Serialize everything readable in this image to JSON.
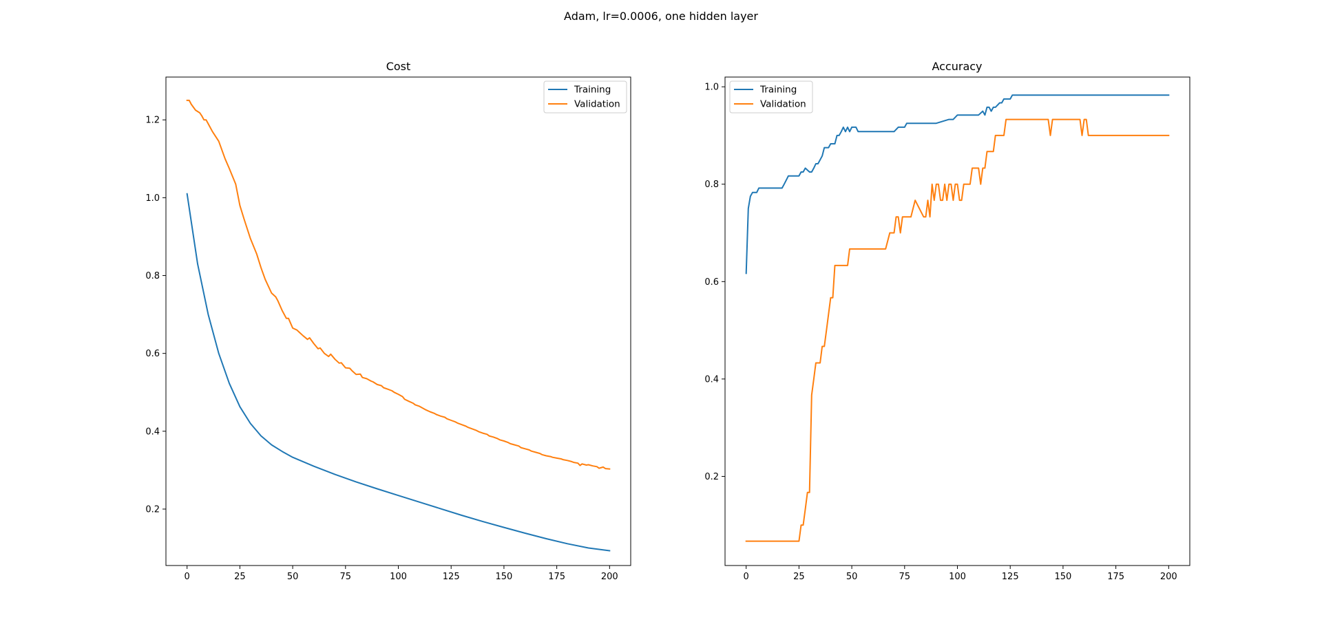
{
  "figure": {
    "suptitle": "Adam, lr=0.0006, one hidden layer"
  },
  "colors": {
    "training": "#1f77b4",
    "validation": "#ff7f0e",
    "axis": "#000000",
    "legend_border": "#cccccc"
  },
  "chart_data": [
    {
      "type": "line",
      "title": "Cost",
      "xlabel": "",
      "ylabel": "",
      "xlim": [
        -10,
        210
      ],
      "ylim": [
        0.055,
        1.31
      ],
      "xticks": [
        0,
        25,
        50,
        75,
        100,
        125,
        150,
        175,
        200
      ],
      "yticks": [
        0.2,
        0.4,
        0.6,
        0.8,
        1.0,
        1.2
      ],
      "ytick_labels": [
        "0.2",
        "0.4",
        "0.6",
        "0.8",
        "1.0",
        "1.2"
      ],
      "grid": false,
      "legend": {
        "location": "upper right",
        "entries": [
          "Training",
          "Validation"
        ]
      },
      "series": [
        {
          "name": "Training",
          "color": "#1f77b4",
          "x": [
            0,
            5,
            10,
            15,
            20,
            25,
            30,
            35,
            40,
            45,
            50,
            60,
            70,
            80,
            90,
            100,
            110,
            120,
            130,
            140,
            150,
            160,
            170,
            180,
            190,
            200
          ],
          "y": [
            1.01,
            0.83,
            0.7,
            0.6,
            0.523,
            0.463,
            0.42,
            0.388,
            0.365,
            0.348,
            0.333,
            0.31,
            0.289,
            0.27,
            0.252,
            0.235,
            0.218,
            0.201,
            0.184,
            0.168,
            0.153,
            0.138,
            0.124,
            0.111,
            0.1,
            0.093
          ]
        },
        {
          "name": "Validation",
          "color": "#ff7f0e",
          "x": [
            0,
            1,
            2,
            4,
            6,
            7,
            8,
            9,
            10,
            12,
            15,
            18,
            20,
            23,
            25,
            27,
            30,
            33,
            35,
            37,
            40,
            42,
            43,
            45,
            47,
            48,
            50,
            52,
            53,
            55,
            57,
            58,
            60,
            62,
            63,
            65,
            67,
            68,
            70,
            72,
            73,
            75,
            77,
            78,
            80,
            82,
            83,
            85,
            87,
            88,
            90,
            92,
            93,
            95,
            97,
            98,
            100,
            102,
            103,
            105,
            107,
            108,
            110,
            112,
            113,
            115,
            117,
            118,
            120,
            122,
            123,
            125,
            127,
            128,
            130,
            132,
            133,
            135,
            137,
            138,
            140,
            142,
            143,
            145,
            147,
            148,
            150,
            152,
            153,
            155,
            157,
            158,
            160,
            162,
            163,
            165,
            167,
            168,
            170,
            172,
            173,
            175,
            177,
            178,
            180,
            182,
            183,
            185,
            186,
            187,
            189,
            190,
            192,
            194,
            195,
            197,
            198,
            200
          ],
          "y": [
            1.25,
            1.25,
            1.24,
            1.225,
            1.218,
            1.21,
            1.2,
            1.2,
            1.19,
            1.17,
            1.145,
            1.1,
            1.075,
            1.035,
            0.98,
            0.945,
            0.895,
            0.855,
            0.82,
            0.79,
            0.755,
            0.745,
            0.735,
            0.71,
            0.69,
            0.69,
            0.665,
            0.66,
            0.655,
            0.645,
            0.636,
            0.64,
            0.625,
            0.612,
            0.614,
            0.6,
            0.592,
            0.598,
            0.585,
            0.575,
            0.576,
            0.563,
            0.562,
            0.556,
            0.546,
            0.547,
            0.538,
            0.535,
            0.529,
            0.527,
            0.52,
            0.517,
            0.512,
            0.508,
            0.504,
            0.5,
            0.495,
            0.489,
            0.482,
            0.477,
            0.472,
            0.468,
            0.464,
            0.458,
            0.455,
            0.45,
            0.446,
            0.443,
            0.439,
            0.436,
            0.432,
            0.428,
            0.424,
            0.421,
            0.417,
            0.413,
            0.41,
            0.406,
            0.402,
            0.399,
            0.395,
            0.392,
            0.388,
            0.385,
            0.381,
            0.378,
            0.375,
            0.371,
            0.368,
            0.365,
            0.362,
            0.358,
            0.355,
            0.352,
            0.349,
            0.346,
            0.343,
            0.34,
            0.337,
            0.335,
            0.333,
            0.331,
            0.329,
            0.327,
            0.325,
            0.322,
            0.32,
            0.318,
            0.312,
            0.316,
            0.313,
            0.314,
            0.311,
            0.309,
            0.305,
            0.308,
            0.304,
            0.303
          ]
        }
      ]
    },
    {
      "type": "line",
      "title": "Accuracy",
      "xlabel": "",
      "ylabel": "",
      "xlim": [
        -10,
        210
      ],
      "ylim": [
        0.017,
        1.02
      ],
      "xticks": [
        0,
        25,
        50,
        75,
        100,
        125,
        150,
        175,
        200
      ],
      "yticks": [
        0.2,
        0.4,
        0.6,
        0.8,
        1.0
      ],
      "ytick_labels": [
        "0.2",
        "0.4",
        "0.6",
        "0.8",
        "1.0"
      ],
      "grid": false,
      "legend": {
        "location": "upper left",
        "entries": [
          "Training",
          "Validation"
        ]
      },
      "series": [
        {
          "name": "Training",
          "color": "#1f77b4",
          "x": [
            0,
            1,
            2,
            3,
            4,
            5,
            6,
            10,
            12,
            14,
            16,
            17,
            18,
            20,
            22,
            23,
            24,
            25,
            26,
            27,
            28,
            30,
            31,
            32,
            33,
            34,
            35,
            36,
            37,
            38,
            39,
            40,
            41,
            42,
            43,
            44,
            45,
            46,
            47,
            48,
            49,
            50,
            51,
            52,
            53,
            60,
            70,
            72,
            74,
            75,
            76,
            80,
            90,
            96,
            98,
            100,
            110,
            112,
            113,
            114,
            115,
            116,
            117,
            118,
            120,
            121,
            122,
            124,
            125,
            126,
            127,
            130,
            150,
            200
          ],
          "y": [
            0.617,
            0.75,
            0.775,
            0.783,
            0.783,
            0.783,
            0.792,
            0.792,
            0.792,
            0.792,
            0.792,
            0.792,
            0.8,
            0.817,
            0.817,
            0.817,
            0.817,
            0.817,
            0.825,
            0.825,
            0.833,
            0.825,
            0.825,
            0.833,
            0.842,
            0.842,
            0.85,
            0.858,
            0.875,
            0.875,
            0.875,
            0.883,
            0.883,
            0.883,
            0.9,
            0.9,
            0.908,
            0.917,
            0.908,
            0.917,
            0.908,
            0.917,
            0.917,
            0.917,
            0.908,
            0.908,
            0.908,
            0.917,
            0.917,
            0.917,
            0.925,
            0.925,
            0.925,
            0.933,
            0.933,
            0.942,
            0.942,
            0.95,
            0.942,
            0.958,
            0.958,
            0.95,
            0.958,
            0.958,
            0.967,
            0.967,
            0.975,
            0.975,
            0.975,
            0.983,
            0.983,
            0.983,
            0.983,
            0.983
          ]
        },
        {
          "name": "Validation",
          "color": "#ff7f0e",
          "x": [
            0,
            5,
            10,
            15,
            20,
            25,
            26,
            27,
            28,
            29,
            30,
            31,
            32,
            33,
            34,
            35,
            36,
            37,
            38,
            39,
            40,
            41,
            42,
            43,
            44,
            45,
            46,
            47,
            48,
            49,
            50,
            52,
            54,
            60,
            66,
            68,
            69,
            70,
            71,
            72,
            73,
            74,
            75,
            76,
            77,
            78,
            80,
            84,
            85,
            86,
            87,
            88,
            89,
            90,
            91,
            92,
            93,
            94,
            95,
            96,
            97,
            98,
            99,
            100,
            101,
            102,
            103,
            104,
            105,
            106,
            107,
            108,
            109,
            110,
            111,
            112,
            113,
            114,
            115,
            116,
            117,
            118,
            119,
            120,
            121,
            122,
            123,
            124,
            125,
            126,
            127,
            128,
            130,
            131,
            132,
            133,
            134,
            135,
            140,
            142,
            143,
            144,
            145,
            150,
            155,
            156,
            157,
            158,
            159,
            160,
            161,
            162,
            165,
            170,
            200
          ],
          "y": [
            0.067,
            0.067,
            0.067,
            0.067,
            0.067,
            0.067,
            0.1,
            0.1,
            0.133,
            0.167,
            0.167,
            0.367,
            0.4,
            0.433,
            0.433,
            0.433,
            0.467,
            0.467,
            0.5,
            0.533,
            0.567,
            0.567,
            0.633,
            0.633,
            0.633,
            0.633,
            0.633,
            0.633,
            0.633,
            0.667,
            0.667,
            0.667,
            0.667,
            0.667,
            0.667,
            0.7,
            0.7,
            0.7,
            0.733,
            0.733,
            0.7,
            0.733,
            0.733,
            0.733,
            0.733,
            0.733,
            0.767,
            0.733,
            0.733,
            0.767,
            0.733,
            0.8,
            0.767,
            0.8,
            0.8,
            0.767,
            0.767,
            0.8,
            0.767,
            0.8,
            0.8,
            0.767,
            0.8,
            0.8,
            0.767,
            0.767,
            0.8,
            0.8,
            0.8,
            0.8,
            0.833,
            0.833,
            0.833,
            0.833,
            0.8,
            0.833,
            0.833,
            0.867,
            0.867,
            0.867,
            0.867,
            0.9,
            0.9,
            0.9,
            0.9,
            0.9,
            0.933,
            0.933,
            0.933,
            0.933,
            0.933,
            0.933,
            0.933,
            0.933,
            0.933,
            0.933,
            0.933,
            0.933,
            0.933,
            0.933,
            0.933,
            0.9,
            0.933,
            0.933,
            0.933,
            0.933,
            0.933,
            0.933,
            0.9,
            0.933,
            0.933,
            0.9,
            0.9,
            0.9,
            0.9
          ]
        }
      ]
    }
  ]
}
